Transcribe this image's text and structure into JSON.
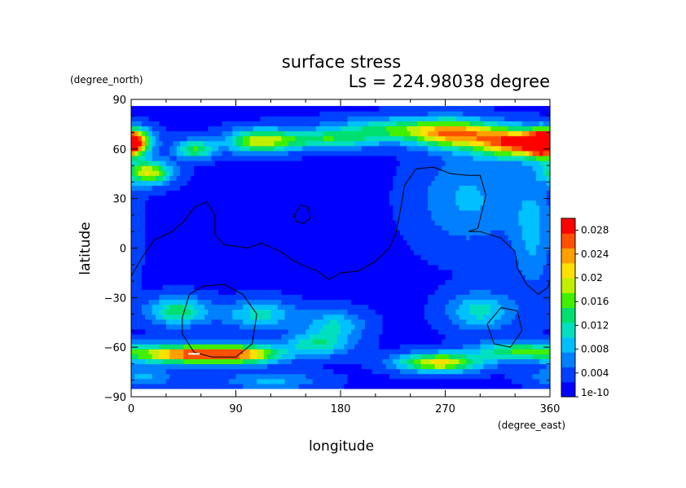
{
  "chart_data": {
    "type": "heatmap",
    "title": "surface stress",
    "subtitle": "Ls = 224.98038 degree",
    "xlabel": "longitude",
    "ylabel": "latitude",
    "x_unit": "(degree_east)",
    "y_unit": "(degree_north)",
    "xlim": [
      0,
      360
    ],
    "ylim": [
      -90,
      90
    ],
    "x_ticks": [
      0,
      90,
      180,
      270,
      360
    ],
    "y_ticks": [
      -90,
      -60,
      -30,
      0,
      30,
      60,
      90
    ],
    "x_tick_labels": [
      "0",
      "90",
      "180",
      "270",
      "360"
    ],
    "y_tick_labels": [
      "−90",
      "−60",
      "−30",
      "0",
      "30",
      "60",
      "90"
    ],
    "colorbar": {
      "range": [
        0,
        0.03
      ],
      "tick_values": [
        0,
        0.004,
        0.008,
        0.012,
        0.016,
        0.02,
        0.024,
        0.028
      ],
      "tick_labels": [
        "1e-10",
        "0.004",
        "0.008",
        "0.012",
        "0.016",
        "0.02",
        "0.024",
        "0.028"
      ],
      "colors": [
        "#0000ff",
        "#0040ff",
        "#0080ff",
        "#00c0ff",
        "#00e0c0",
        "#00e070",
        "#40f000",
        "#c0f000",
        "#ffe000",
        "#ffa000",
        "#ff5000",
        "#ff0000"
      ]
    },
    "field": {
      "background": 0.002,
      "features": [
        {
          "lon": 0,
          "lat": 66,
          "sx": 12,
          "sy": 5,
          "v": 0.017
        },
        {
          "lon": 15,
          "lat": 46,
          "sx": 14,
          "sy": 5,
          "v": 0.018
        },
        {
          "lon": 55,
          "lat": 60,
          "sx": 12,
          "sy": 4,
          "v": 0.013
        },
        {
          "lon": 110,
          "lat": 65,
          "sx": 20,
          "sy": 5,
          "v": 0.016
        },
        {
          "lon": 165,
          "lat": 66,
          "sx": 30,
          "sy": 4,
          "v": 0.011
        },
        {
          "lon": 230,
          "lat": 72,
          "sx": 40,
          "sy": 5,
          "v": 0.012
        },
        {
          "lon": 280,
          "lat": 69,
          "sx": 25,
          "sy": 6,
          "v": 0.018
        },
        {
          "lon": 330,
          "lat": 64,
          "sx": 22,
          "sy": 6,
          "v": 0.024
        },
        {
          "lon": 355,
          "lat": 62,
          "sx": 10,
          "sy": 5,
          "v": 0.02
        },
        {
          "lon": 290,
          "lat": 30,
          "sx": 30,
          "sy": 20,
          "v": 0.006
        },
        {
          "lon": 345,
          "lat": 10,
          "sx": 12,
          "sy": 25,
          "v": 0.006
        },
        {
          "lon": 40,
          "lat": -38,
          "sx": 18,
          "sy": 6,
          "v": 0.012
        },
        {
          "lon": 110,
          "lat": -40,
          "sx": 22,
          "sy": 6,
          "v": 0.009
        },
        {
          "lon": 175,
          "lat": -46,
          "sx": 18,
          "sy": 6,
          "v": 0.008
        },
        {
          "lon": 300,
          "lat": -38,
          "sx": 20,
          "sy": 8,
          "v": 0.009
        },
        {
          "lon": 45,
          "lat": -64,
          "sx": 32,
          "sy": 4,
          "v": 0.022
        },
        {
          "lon": 95,
          "lat": -64,
          "sx": 25,
          "sy": 4,
          "v": 0.018
        },
        {
          "lon": 160,
          "lat": -58,
          "sx": 20,
          "sy": 5,
          "v": 0.01
        },
        {
          "lon": 265,
          "lat": -69,
          "sx": 25,
          "sy": 4,
          "v": 0.019
        },
        {
          "lon": 330,
          "lat": -62,
          "sx": 25,
          "sy": 4,
          "v": 0.012
        },
        {
          "lon": 120,
          "lat": -80,
          "sx": 30,
          "sy": 4,
          "v": 0.006
        },
        {
          "lon": 10,
          "lat": -78,
          "sx": 20,
          "sy": 4,
          "v": 0.006
        }
      ]
    },
    "contours": [
      [
        [
          0,
          -17
        ],
        [
          10,
          -5
        ],
        [
          20,
          5
        ],
        [
          35,
          10
        ],
        [
          45,
          16
        ],
        [
          55,
          25
        ],
        [
          65,
          28
        ],
        [
          72,
          20
        ],
        [
          72,
          8
        ],
        [
          80,
          2
        ],
        [
          100,
          0
        ],
        [
          112,
          3
        ],
        [
          128,
          -2
        ],
        [
          140,
          -8
        ],
        [
          160,
          -14
        ],
        [
          170,
          -19
        ],
        [
          180,
          -15
        ],
        [
          195,
          -14
        ],
        [
          210,
          -8
        ],
        [
          222,
          0
        ],
        [
          228,
          10
        ],
        [
          232,
          25
        ],
        [
          235,
          38
        ],
        [
          245,
          48
        ],
        [
          260,
          49
        ],
        [
          275,
          45
        ],
        [
          290,
          44
        ],
        [
          300,
          44
        ],
        [
          305,
          32
        ],
        [
          298,
          12
        ],
        [
          290,
          10
        ],
        [
          300,
          10
        ],
        [
          318,
          6
        ],
        [
          330,
          -2
        ],
        [
          332,
          -12
        ],
        [
          340,
          -22
        ],
        [
          350,
          -28
        ],
        [
          358,
          -24
        ],
        [
          360,
          -20
        ]
      ],
      [
        [
          140,
          20
        ],
        [
          146,
          26
        ],
        [
          152,
          25
        ],
        [
          154,
          18
        ],
        [
          148,
          15
        ],
        [
          142,
          16
        ],
        [
          140,
          20
        ]
      ],
      [
        [
          44,
          -42
        ],
        [
          50,
          -28
        ],
        [
          62,
          -23
        ],
        [
          80,
          -22
        ],
        [
          96,
          -28
        ],
        [
          108,
          -40
        ],
        [
          104,
          -58
        ],
        [
          90,
          -66
        ],
        [
          70,
          -66
        ],
        [
          54,
          -63
        ],
        [
          44,
          -52
        ],
        [
          44,
          -42
        ]
      ],
      [
        [
          306,
          -46
        ],
        [
          318,
          -36
        ],
        [
          332,
          -38
        ],
        [
          336,
          -50
        ],
        [
          326,
          -60
        ],
        [
          312,
          -58
        ],
        [
          306,
          -46
        ]
      ]
    ],
    "white_marks": [
      {
        "lon": 52,
        "lat": -64
      },
      {
        "lon": 56,
        "lat": -64
      }
    ]
  }
}
